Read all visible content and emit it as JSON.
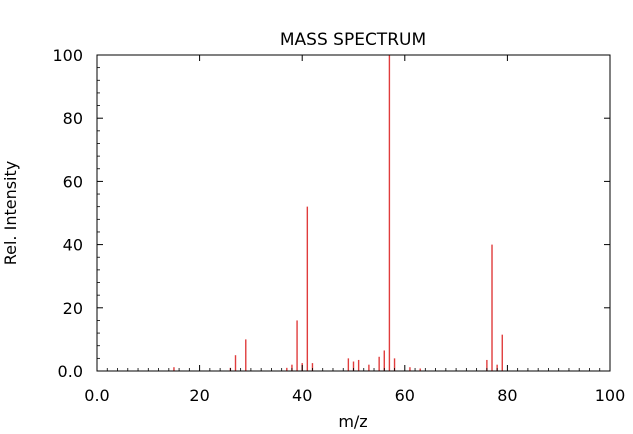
{
  "chart_data": {
    "type": "bar",
    "title": "MASS SPECTRUM",
    "xlabel": "m/z",
    "ylabel": "Rel. Intensity",
    "xlim": [
      0,
      100
    ],
    "ylim": [
      0,
      100
    ],
    "x_tick_labels": [
      "0.0",
      "20",
      "40",
      "60",
      "80",
      "100"
    ],
    "y_tick_labels": [
      "0.0",
      "20",
      "40",
      "60",
      "80",
      "100"
    ],
    "grid": false,
    "bar_color": "#e03c3c",
    "peaks": [
      {
        "mz": 15,
        "intensity": 1.2
      },
      {
        "mz": 26,
        "intensity": 1.0
      },
      {
        "mz": 27,
        "intensity": 5.0
      },
      {
        "mz": 29,
        "intensity": 10.0
      },
      {
        "mz": 37,
        "intensity": 1.0
      },
      {
        "mz": 38,
        "intensity": 2.0
      },
      {
        "mz": 39,
        "intensity": 16.0
      },
      {
        "mz": 40,
        "intensity": 2.5
      },
      {
        "mz": 41,
        "intensity": 52.0
      },
      {
        "mz": 42,
        "intensity": 2.5
      },
      {
        "mz": 49,
        "intensity": 4.0
      },
      {
        "mz": 50,
        "intensity": 3.0
      },
      {
        "mz": 51,
        "intensity": 3.5
      },
      {
        "mz": 53,
        "intensity": 2.0
      },
      {
        "mz": 55,
        "intensity": 4.5
      },
      {
        "mz": 56,
        "intensity": 6.5
      },
      {
        "mz": 57,
        "intensity": 100.0
      },
      {
        "mz": 58,
        "intensity": 4.0
      },
      {
        "mz": 61,
        "intensity": 1.2
      },
      {
        "mz": 63,
        "intensity": 0.8
      },
      {
        "mz": 76,
        "intensity": 3.5
      },
      {
        "mz": 77,
        "intensity": 40.0
      },
      {
        "mz": 78,
        "intensity": 2.0
      },
      {
        "mz": 79,
        "intensity": 11.5
      }
    ]
  }
}
